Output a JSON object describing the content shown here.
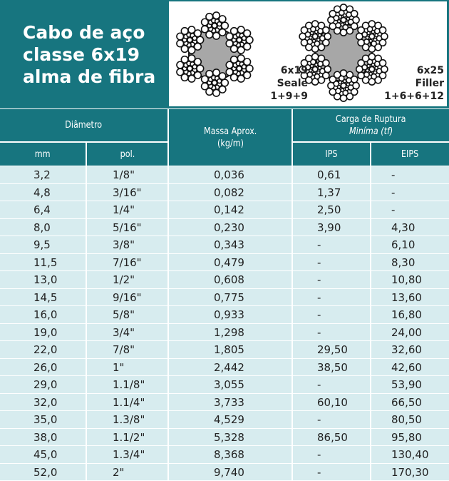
{
  "title_lines": [
    "Cabo de aço",
    "classe 6x19",
    "alma de fibra"
  ],
  "rope_a": {
    "label_lines": [
      "6x19",
      "Seale",
      "1+9+9"
    ]
  },
  "rope_b": {
    "label_lines": [
      "6x25",
      "Filler",
      "1+6+6+12"
    ]
  },
  "colors": {
    "teal": "#17757f",
    "row_bg": "#d7ecef",
    "core": "#a7a7a7"
  },
  "table": {
    "header": {
      "diametro": "Diâmetro",
      "mm": "mm",
      "pol": "pol.",
      "massa_line1": "Massa Aprox.",
      "massa_line2": "(kg/m)",
      "carga_line1": "Carga de Ruptura",
      "carga_line2": "Miníma (tf)",
      "ips": "IPS",
      "eips": "EIPS"
    },
    "rows": [
      {
        "mm": "3,2",
        "pol": "1/8\"",
        "massa": "0,036",
        "ips": "0,61",
        "eips": "-"
      },
      {
        "mm": "4,8",
        "pol": "3/16\"",
        "massa": "0,082",
        "ips": "1,37",
        "eips": "-"
      },
      {
        "mm": "6,4",
        "pol": "1/4\"",
        "massa": "0,142",
        "ips": "2,50",
        "eips": "-"
      },
      {
        "mm": "8,0",
        "pol": "5/16\"",
        "massa": "0,230",
        "ips": "3,90",
        "eips": "4,30"
      },
      {
        "mm": "9,5",
        "pol": "3/8\"",
        "massa": "0,343",
        "ips": "-",
        "eips": "6,10"
      },
      {
        "mm": "11,5",
        "pol": "7/16\"",
        "massa": "0,479",
        "ips": "-",
        "eips": "8,30"
      },
      {
        "mm": "13,0",
        "pol": "1/2\"",
        "massa": "0,608",
        "ips": "-",
        "eips": "10,80"
      },
      {
        "mm": "14,5",
        "pol": "9/16\"",
        "massa": "0,775",
        "ips": "-",
        "eips": "13,60"
      },
      {
        "mm": "16,0",
        "pol": "5/8\"",
        "massa": "0,933",
        "ips": "-",
        "eips": "16,80"
      },
      {
        "mm": "19,0",
        "pol": "3/4\"",
        "massa": "1,298",
        "ips": "-",
        "eips": "24,00"
      },
      {
        "mm": "22,0",
        "pol": "7/8\"",
        "massa": "1,805",
        "ips": "29,50",
        "eips": "32,60"
      },
      {
        "mm": "26,0",
        "pol": "1\"",
        "massa": "2,442",
        "ips": "38,50",
        "eips": "42,60"
      },
      {
        "mm": "29,0",
        "pol": "1.1/8\"",
        "massa": "3,055",
        "ips": "-",
        "eips": "53,90"
      },
      {
        "mm": "32,0",
        "pol": "1.1/4\"",
        "massa": "3,733",
        "ips": "60,10",
        "eips": "66,50"
      },
      {
        "mm": "35,0",
        "pol": "1.3/8\"",
        "massa": "4,529",
        "ips": "-",
        "eips": "80,50"
      },
      {
        "mm": "38,0",
        "pol": "1.1/2\"",
        "massa": "5,328",
        "ips": "86,50",
        "eips": "95,80"
      },
      {
        "mm": "45,0",
        "pol": "1.3/4\"",
        "massa": "8,368",
        "ips": "-",
        "eips": "130,40"
      },
      {
        "mm": "52,0",
        "pol": "2\"",
        "massa": "9,740",
        "ips": "-",
        "eips": "170,30"
      }
    ]
  }
}
